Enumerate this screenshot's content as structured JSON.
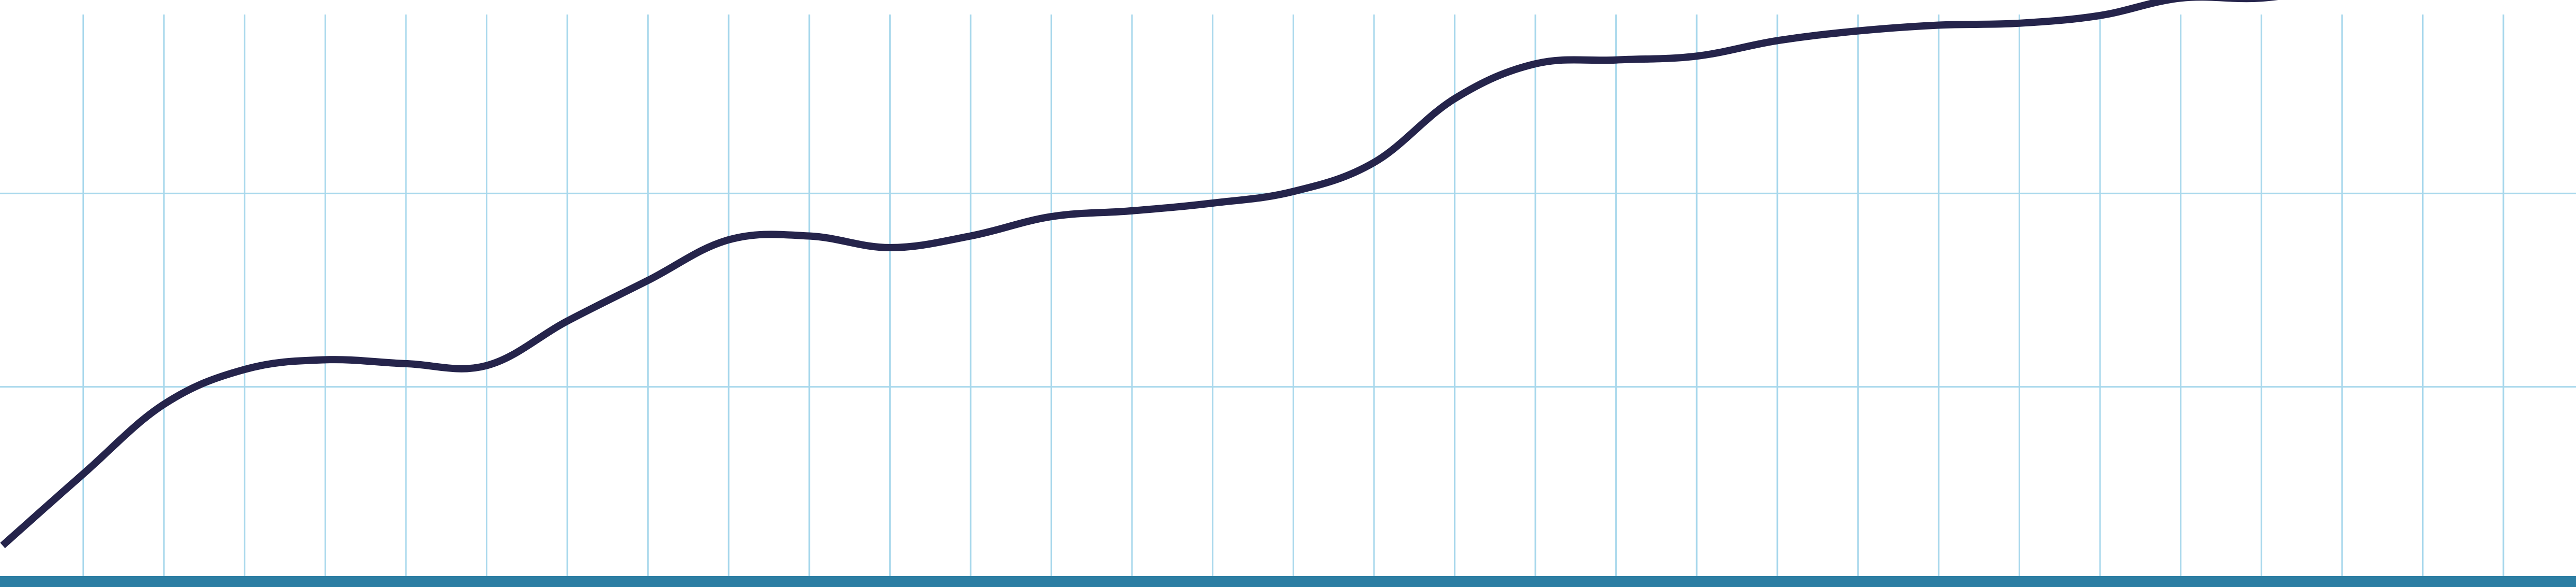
{
  "chart_data": {
    "type": "line",
    "title": "",
    "xlabel": "",
    "ylabel": "",
    "x_start": 0,
    "x_step": 1,
    "xlim": [
      0,
      31.9
    ],
    "ylim": [
      0,
      3
    ],
    "grid": {
      "vertical": true,
      "horizontal": true
    },
    "vertical_gridlines_at": [
      1,
      2,
      3,
      4,
      5,
      6,
      7,
      8,
      9,
      10,
      11,
      12,
      13,
      14,
      15,
      16,
      17,
      18,
      19,
      20,
      21,
      22,
      23,
      24,
      25,
      26,
      27,
      28,
      29,
      30,
      31
    ],
    "horizontal_gridlines_at": [
      1,
      2
    ],
    "series": [
      {
        "values": [
          0.18,
          0.55,
          0.91,
          1.09,
          1.14,
          1.12,
          1.11,
          1.34,
          1.55,
          1.76,
          1.78,
          1.72,
          1.78,
          1.88,
          1.91,
          1.95,
          2.01,
          2.16,
          2.49,
          2.67,
          2.69,
          2.71,
          2.79,
          2.84,
          2.87,
          2.88,
          2.92,
          3.01,
          3.01,
          3.07,
          3.1
        ]
      }
    ]
  },
  "colors": {
    "line": "#25244b",
    "grid": "#a8d8ec",
    "baseline": "#2c7ea3",
    "background": "#ffffff"
  }
}
